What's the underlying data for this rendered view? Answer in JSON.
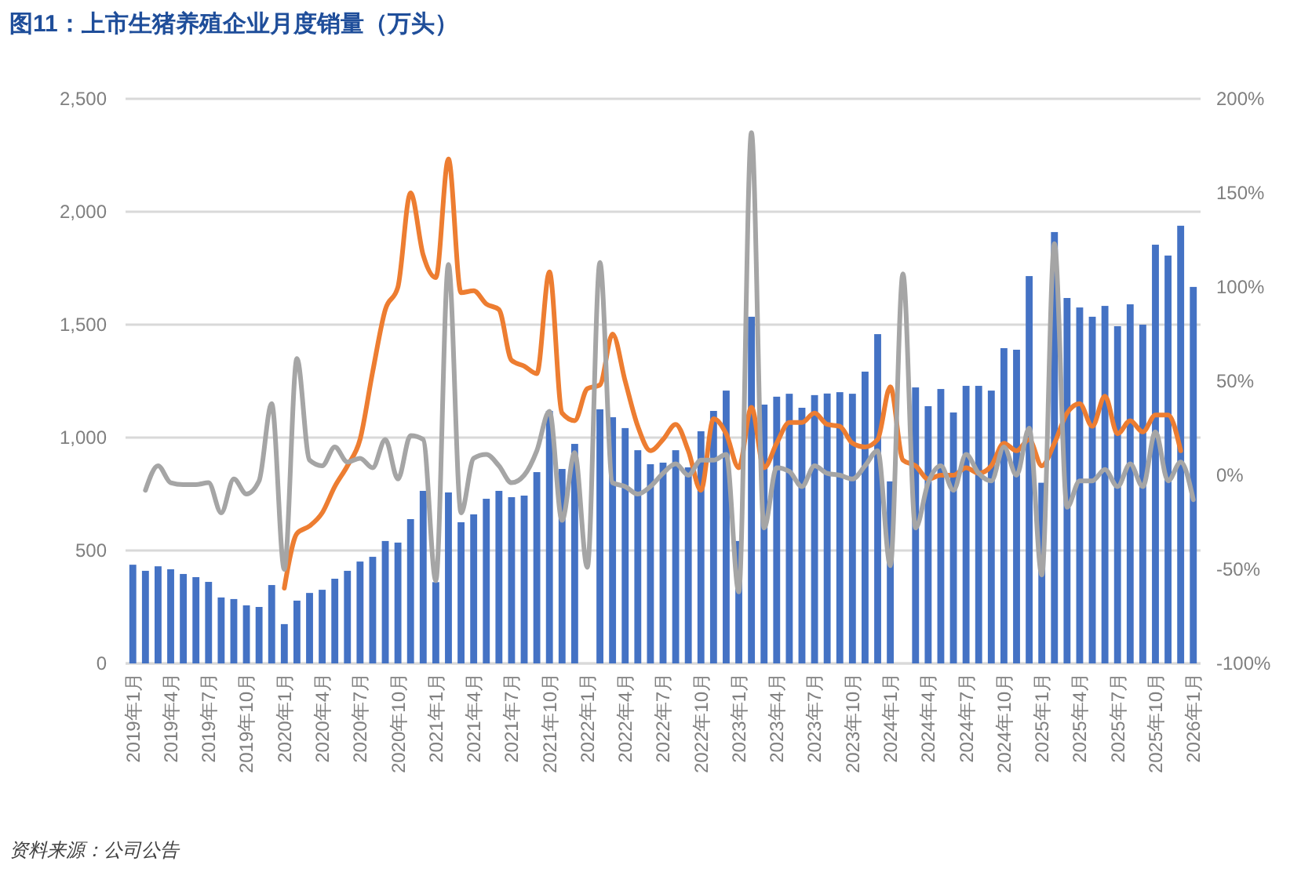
{
  "chart_data": {
    "type": "bar",
    "title": "图11：上市生猪养殖企业月度销量（万头）",
    "annotations": [
      "资料来源：公司公告"
    ],
    "categories": [
      "2019年1月",
      null,
      null,
      "2019年4月",
      null,
      null,
      "2019年7月",
      null,
      null,
      "2019年10月",
      null,
      null,
      "2020年1月",
      null,
      null,
      "2020年4月",
      null,
      null,
      "2020年7月",
      null,
      null,
      "2020年10月",
      null,
      null,
      "2021年1月",
      null,
      null,
      "2021年4月",
      null,
      null,
      "2021年7月",
      null,
      null,
      "2021年10月",
      null,
      null,
      "2022年1月",
      null,
      null,
      "2022年4月",
      null,
      null,
      "2022年7月",
      null,
      null,
      "2022年10月",
      null,
      null,
      "2023年1月",
      null,
      null,
      "2023年4月",
      null,
      null,
      "2023年7月",
      null,
      null,
      "2023年10月",
      null,
      null,
      "2024年1月",
      null,
      null,
      "2024年4月",
      null,
      null,
      "2024年7月",
      null,
      null,
      "2024年10月",
      null,
      null,
      "2025年1月",
      null,
      null,
      "2025年4月",
      null,
      null,
      "2025年7月",
      null,
      null,
      "2025年10月",
      null,
      null,
      "2026年1月"
    ],
    "series": [
      {
        "color": "#4472c4",
        "values": [
          437,
          410,
          430,
          417,
          396,
          382,
          361,
          292,
          285,
          257,
          250,
          347,
          174,
          278,
          312,
          326,
          375,
          410,
          451,
          472,
          542,
          535,
          639,
          764,
          360,
          757,
          625,
          660,
          729,
          764,
          736,
          743,
          847,
          1118,
          861,
          972,
          null,
          1125,
          1090,
          1042,
          944,
          882,
          889,
          944,
          868,
          1028,
          1118,
          1208,
          542,
          1535,
          1146,
          1181,
          1194,
          1132,
          1188,
          1195,
          1201,
          1194,
          1292,
          1458,
          806,
          null,
          1222,
          1139,
          1215,
          1111,
          1229,
          1229,
          1208,
          1396,
          1389,
          1715,
          800,
          1910,
          1618,
          1576,
          1535,
          1583,
          1493,
          1590,
          1500,
          1854,
          1806,
          1938,
          1667
        ]
      },
      {
        "type": "line",
        "axis": "y2",
        "color": "#ed7d31",
        "values": [
          null,
          null,
          null,
          null,
          null,
          null,
          null,
          null,
          null,
          null,
          null,
          null,
          -60,
          -31,
          -27,
          -20,
          -6,
          5,
          19,
          55,
          88,
          100,
          150,
          117,
          105,
          168,
          97,
          98,
          91,
          88,
          61,
          58,
          54,
          108,
          33,
          29,
          46,
          48,
          75,
          50,
          26,
          13,
          19,
          27,
          13,
          -8,
          30,
          22,
          4,
          36,
          4,
          17,
          28,
          28,
          33,
          27,
          26,
          17,
          15,
          19,
          47,
          8,
          5,
          -2,
          0,
          0,
          4,
          1,
          5,
          17,
          13,
          19,
          5,
          17,
          33,
          38,
          26,
          42,
          22,
          29,
          23,
          32,
          32,
          13,
          null
        ]
      },
      {
        "type": "line",
        "axis": "y2",
        "color": "#a5a5a5",
        "values": [
          null,
          -8,
          5,
          -4,
          -5,
          -5,
          -4,
          -20,
          -2,
          -10,
          -3,
          38,
          -50,
          62,
          8,
          5,
          15,
          7,
          9,
          4,
          19,
          -2,
          21,
          19,
          -56,
          112,
          -20,
          9,
          11,
          5,
          -4,
          0,
          13,
          34,
          -24,
          12,
          -49,
          113,
          -4,
          -6,
          -10,
          -6,
          1,
          6,
          0,
          8,
          8,
          11,
          -62,
          182,
          -28,
          4,
          2,
          -6,
          5,
          1,
          0,
          -2,
          5,
          13,
          -48,
          107,
          -28,
          -4,
          5,
          -8,
          11,
          1,
          -3,
          15,
          0,
          25,
          -53,
          123,
          -17,
          -3,
          -3,
          3,
          -6,
          6,
          -6,
          23,
          -3,
          7,
          -13
        ]
      }
    ],
    "ylim": [
      0,
      2500
    ],
    "yticks": [
      0,
      500,
      {
        "value": 1000,
        "label": "1,000"
      },
      {
        "value": 1500,
        "label": "1,500"
      },
      {
        "value": 2000,
        "label": "2,000"
      },
      {
        "value": 2500,
        "label": "2,500"
      }
    ],
    "y2lim": [
      -100,
      200
    ],
    "y2ticks": [
      {
        "value": -100,
        "label": "-100%"
      },
      {
        "value": -50,
        "label": "-50%"
      },
      {
        "value": 0,
        "label": "0%"
      },
      {
        "value": 50,
        "label": "50%"
      },
      {
        "value": 100,
        "label": "100%"
      },
      {
        "value": 150,
        "label": "150%"
      },
      {
        "value": 200,
        "label": "200%"
      }
    ],
    "grid": "y"
  }
}
